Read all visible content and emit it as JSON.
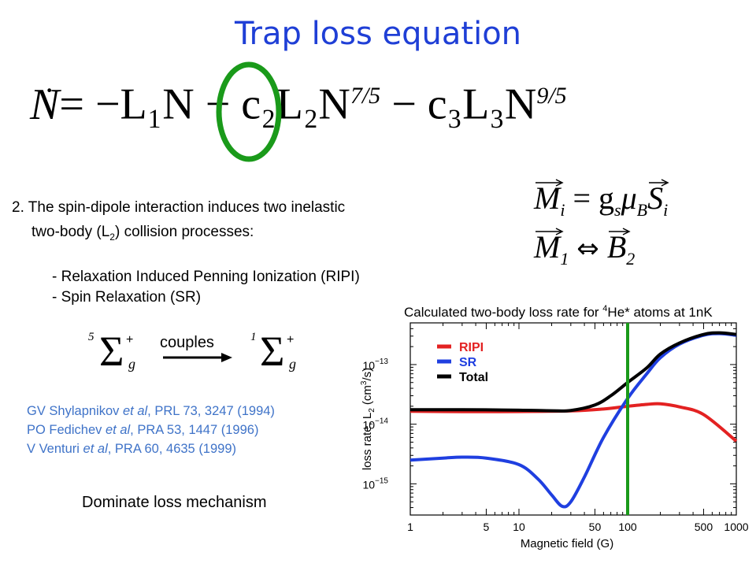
{
  "slide": {
    "title": "Trap loss equation",
    "equation": {
      "lhs": "N",
      "term1": "= −L₁N",
      "term2_coef": "− c₂L₂N",
      "term2_exp": "7/5",
      "term3_coef": "− c₃L₃N",
      "term3_exp": "9/5"
    },
    "text": {
      "line1": "2. The spin-dipole interaction induces two inelastic",
      "line2_pre": "two-body (L",
      "line2_sub": "2",
      "line2_post": ") collision processes:",
      "bullet1": "- Relaxation Induced Penning Ionization (RIPI)",
      "bullet2": "- Spin Relaxation (SR)"
    },
    "moment_eq": {
      "line1_lhs": "M",
      "line1_sub": "i",
      "line1_rhs1": "= g",
      "line1_s": "s",
      "line1_mu": "μ",
      "line1_B": "B",
      "line1_S": "S",
      "line1_Ssub": "i",
      "line2_lhs": "M",
      "line2_sub": "1",
      "line2_arrow": "⇔",
      "line2_rhs": "B",
      "line2_rhs_sub": "2"
    },
    "states": {
      "left_sup": "5",
      "left_symbol": "Σ",
      "left_plus": "+",
      "left_sub": "g",
      "couples": "couples",
      "right_sup": "1",
      "right_symbol": "Σ",
      "right_plus": "+",
      "right_sub": "g"
    },
    "references": [
      {
        "author": "GV Shylapnikov ",
        "etal": "et al",
        "rest": ", PRL 73, 3247 (1994)"
      },
      {
        "author": "PO Fedichev ",
        "etal": "et al",
        "rest": ", PRA 53, 1447 (1996)"
      },
      {
        "author": "V Venturi ",
        "etal": "et al",
        "rest": ", PRA 60, 4635 (1999)"
      }
    ],
    "dominate": "Dominate loss mechanism"
  },
  "colors": {
    "title": "#1f3fd6",
    "ripi": "#e32222",
    "sr": "#1f3fe0",
    "total": "#000000",
    "marker": "#1a9a1a",
    "circle": "#1a9a1a",
    "refs": "#3f73c8"
  },
  "chart_data": {
    "type": "line",
    "title": "Calculated two-body loss rate for ⁴He* atoms at 1nK",
    "title_pre": "Calculated two-body loss rate for ",
    "title_sup": "4",
    "title_post": "He* atoms at 1nK",
    "xlabel": "Magnetic field (G)",
    "ylabel_pre": "loss rate, L",
    "ylabel_sub": "2",
    "ylabel_mid": " (cm",
    "ylabel_sup": "3",
    "ylabel_post": "/s)",
    "x_scale": "log",
    "y_scale": "log",
    "xlim": [
      1,
      1000
    ],
    "ylim": [
      3e-16,
      5e-13
    ],
    "x_ticks": [
      {
        "v": 1,
        "label": "1"
      },
      {
        "v": 5,
        "label": "5"
      },
      {
        "v": 10,
        "label": "10"
      },
      {
        "v": 50,
        "label": "50"
      },
      {
        "v": 100,
        "label": "100"
      },
      {
        "v": 500,
        "label": "500"
      },
      {
        "v": 1000,
        "label": "1000"
      }
    ],
    "y_ticks": [
      {
        "v": 1e-13,
        "base": "10",
        "exp": "−13"
      },
      {
        "v": 1e-14,
        "base": "10",
        "exp": "−14"
      },
      {
        "v": 1e-15,
        "base": "10",
        "exp": "−15"
      }
    ],
    "legend": [
      {
        "name": "RIPI",
        "color": "#e32222"
      },
      {
        "name": "SR",
        "color": "#1f3fe0"
      },
      {
        "name": "Total",
        "color": "#000000"
      }
    ],
    "legend_position": "top-left",
    "marker_x": 100,
    "series": [
      {
        "name": "RIPI",
        "color": "#e32222",
        "x": [
          1,
          3,
          10,
          30,
          60,
          100,
          150,
          200,
          300,
          500,
          1000
        ],
        "y": [
          1.65e-14,
          1.62e-14,
          1.63e-14,
          1.67e-14,
          1.8e-14,
          2e-14,
          2.15e-14,
          2.2e-14,
          1.95e-14,
          1.45e-14,
          5.2e-15
        ]
      },
      {
        "name": "SR",
        "color": "#1f3fe0",
        "x": [
          1,
          2,
          3,
          5,
          10,
          15,
          20,
          25,
          30,
          40,
          60,
          100,
          150,
          200,
          300,
          500,
          700,
          1000
        ],
        "y": [
          2.5e-15,
          2.7e-15,
          2.8e-15,
          2.7e-15,
          2.1e-15,
          1.2e-15,
          6.5e-16,
          4.2e-16,
          5e-16,
          1.3e-15,
          6e-15,
          2.7e-14,
          7e-14,
          1.3e-13,
          2.2e-13,
          3.1e-13,
          3.3e-13,
          3.1e-13
        ]
      },
      {
        "name": "Total",
        "color": "#000000",
        "x": [
          1,
          3,
          10,
          20,
          30,
          50,
          70,
          100,
          150,
          200,
          300,
          500,
          700,
          1000
        ],
        "y": [
          1.75e-14,
          1.75e-14,
          1.72e-14,
          1.68e-14,
          1.7e-14,
          2.1e-14,
          3e-14,
          5e-14,
          8.8e-14,
          1.5e-13,
          2.3e-13,
          3.2e-13,
          3.4e-13,
          3.2e-13
        ]
      }
    ]
  }
}
